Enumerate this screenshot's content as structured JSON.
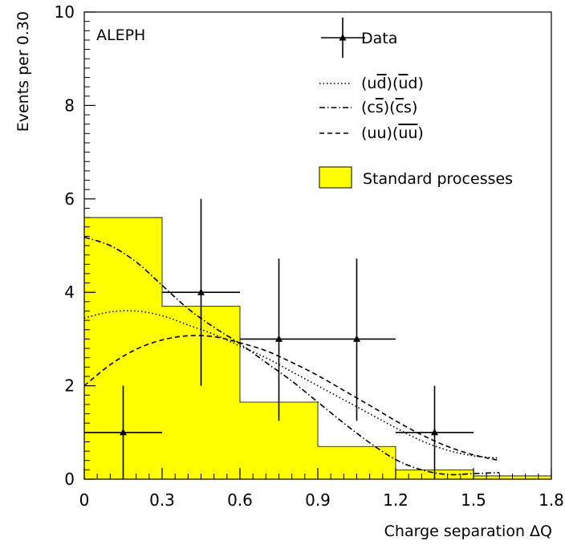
{
  "chart_data": {
    "type": "bar",
    "experiment_label": "ALEPH",
    "xlabel": "Charge separation ΔQ",
    "ylabel": "Events per 0.30",
    "xlim": [
      0,
      1.8
    ],
    "ylim": [
      0,
      10
    ],
    "x_ticks": [
      "0",
      "0.3",
      "0.6",
      "0.9",
      "1.2",
      "1.5",
      "1.8"
    ],
    "x_tick_values": [
      0,
      0.3,
      0.6,
      0.9,
      1.2,
      1.5,
      1.8
    ],
    "y_ticks": [
      "0",
      "2",
      "4",
      "6",
      "8",
      "10"
    ],
    "y_tick_values": [
      0,
      2,
      4,
      6,
      8,
      10
    ],
    "standard_processes": {
      "name": "Standard processes",
      "color": "#ffff00",
      "bin_edges": [
        0,
        0.3,
        0.6,
        0.9,
        1.2,
        1.5,
        1.8
      ],
      "values": [
        5.6,
        3.7,
        1.65,
        0.7,
        0.2,
        0.07
      ]
    },
    "data": {
      "name": "Data",
      "points": [
        {
          "x": 0.15,
          "y": 1,
          "x_err": 0.15,
          "y_low": 0,
          "y_high": 2.0
        },
        {
          "x": 0.45,
          "y": 4,
          "x_err": 0.15,
          "y_low": 2.0,
          "y_high": 6.0
        },
        {
          "x": 0.75,
          "y": 3,
          "x_err": 0.15,
          "y_low": 1.25,
          "y_high": 4.72
        },
        {
          "x": 1.05,
          "y": 3,
          "x_err": 0.15,
          "y_low": 1.25,
          "y_high": 4.72
        },
        {
          "x": 1.35,
          "y": 1,
          "x_err": 0.15,
          "y_low": 0,
          "y_high": 2.0
        }
      ]
    },
    "curves": [
      {
        "name": "(u̅d)(u̅d)",
        "label_parts": [
          "(u",
          "d",
          ")(",
          "u",
          "d)"
        ],
        "style": "dotted",
        "x": [
          0,
          0.1,
          0.2,
          0.3,
          0.4,
          0.5,
          0.6,
          0.7,
          0.8,
          0.9,
          1.0,
          1.1,
          1.2,
          1.3,
          1.4,
          1.5,
          1.6
        ],
        "y": [
          3.45,
          3.58,
          3.6,
          3.5,
          3.3,
          3.1,
          2.85,
          2.6,
          2.3,
          2.0,
          1.7,
          1.4,
          1.1,
          0.82,
          0.62,
          0.5,
          0.45
        ]
      },
      {
        "name": "(cs̅)(c̅s)",
        "label_parts": [
          "(c",
          "s",
          ")(",
          "c",
          "s)"
        ],
        "style": "dashdot",
        "x": [
          0,
          0.1,
          0.2,
          0.3,
          0.4,
          0.5,
          0.6,
          0.7,
          0.8,
          0.9,
          1.0,
          1.1,
          1.2,
          1.3,
          1.4,
          1.5,
          1.6
        ],
        "y": [
          5.18,
          5.0,
          4.65,
          4.15,
          3.65,
          3.25,
          2.9,
          2.5,
          2.1,
          1.65,
          1.2,
          0.78,
          0.42,
          0.2,
          0.1,
          0.12,
          0.14
        ]
      },
      {
        "name": "(uu)(u̅u̅)",
        "label_parts": [
          "(uu)(",
          "uu",
          ")"
        ],
        "style": "dashed",
        "x": [
          0,
          0.1,
          0.2,
          0.3,
          0.4,
          0.5,
          0.6,
          0.7,
          0.8,
          0.9,
          1.0,
          1.1,
          1.2,
          1.3,
          1.4,
          1.5,
          1.6
        ],
        "y": [
          2.0,
          2.45,
          2.78,
          2.98,
          3.07,
          3.05,
          2.92,
          2.75,
          2.5,
          2.22,
          1.9,
          1.58,
          1.25,
          0.95,
          0.7,
          0.52,
          0.4
        ]
      }
    ],
    "grid": false,
    "legend_position": "top-right"
  }
}
